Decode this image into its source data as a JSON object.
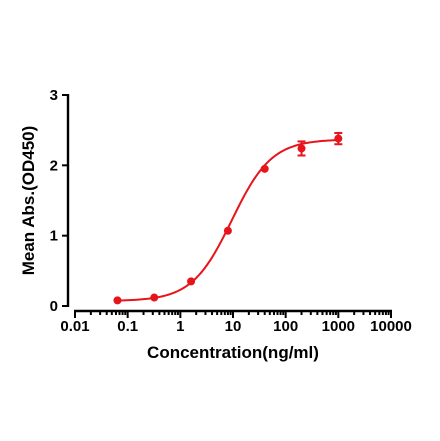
{
  "chart_data": {
    "type": "scatter",
    "title": "",
    "xlabel": "Concentration(ng/ml)",
    "ylabel": "Mean Abs.(OD450)",
    "x_scale": "log",
    "xlim": [
      0.01,
      10000
    ],
    "ylim": [
      0,
      3
    ],
    "x_ticks": [
      "0.01",
      "0.1",
      "1",
      "10",
      "100",
      "1000",
      "10000"
    ],
    "y_ticks": [
      "0",
      "1",
      "2",
      "3"
    ],
    "grid": false,
    "legend": "none",
    "color": "#e8141b",
    "series": [
      {
        "points": [
          {
            "x": 0.064,
            "y": 0.08,
            "err": 0.0
          },
          {
            "x": 0.32,
            "y": 0.12,
            "err": 0.0
          },
          {
            "x": 1.6,
            "y": 0.35,
            "err": 0.0
          },
          {
            "x": 8,
            "y": 1.07,
            "err": 0.0
          },
          {
            "x": 40,
            "y": 1.95,
            "err": 0.0
          },
          {
            "x": 200,
            "y": 2.24,
            "err": 0.1
          },
          {
            "x": 1000,
            "y": 2.38,
            "err": 0.08
          }
        ],
        "fit": {
          "model": "4PL",
          "bottom": 0.07,
          "top": 2.37,
          "ec50": 9.5,
          "hill": 1.15
        }
      }
    ]
  }
}
